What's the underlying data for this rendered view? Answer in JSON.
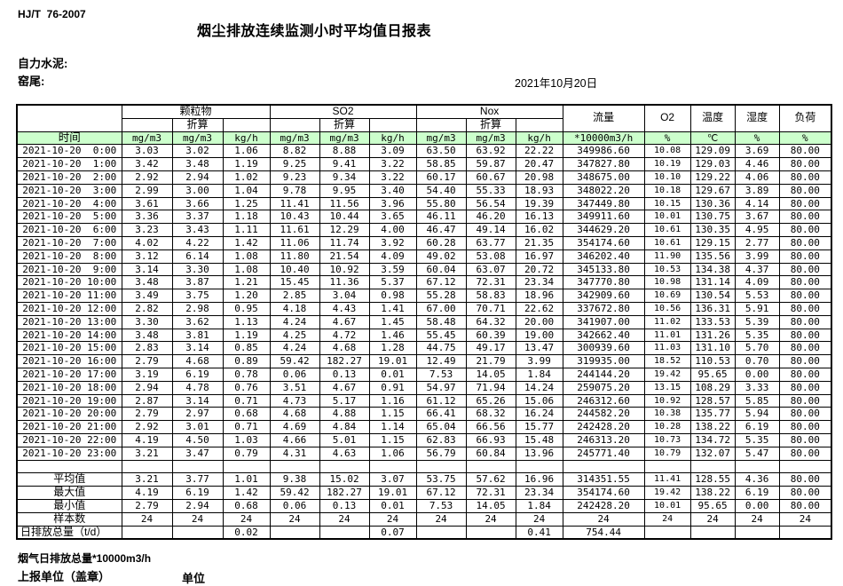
{
  "page": {
    "standard": "HJ/T  76-2007",
    "title": "烟尘排放连续监测小时平均值日报表",
    "company": "自力水泥:",
    "location": "窑尾:",
    "date": "2021年10月20日"
  },
  "footer": {
    "flue_total": "烟气日排放总量*10000m3/h",
    "report_unit": "上报单位（盖章）",
    "unit": "单位"
  },
  "table": {
    "time_label": "时间",
    "converted": "折算",
    "groups": {
      "pm": "颗粒物",
      "so2": "SO2",
      "nox": "Nox",
      "flow": "流量",
      "o2": "O2",
      "temp": "温度",
      "humidity": "湿度",
      "load": "负荷"
    },
    "units": [
      "mg/m3",
      "mg/m3",
      "kg/h",
      "mg/m3",
      "mg/m3",
      "kg/h",
      "mg/m3",
      "mg/m3",
      "kg/h",
      "*10000m3/h",
      "%",
      "℃",
      "%",
      "%"
    ],
    "rows": [
      {
        "t": "2021-10-20  0:00",
        "v": [
          "3.03",
          "3.02",
          "1.06",
          "8.82",
          "8.88",
          "3.09",
          "63.50",
          "63.92",
          "22.22",
          "349986.60",
          "10.08",
          "129.09",
          "3.69",
          "80.00"
        ]
      },
      {
        "t": "2021-10-20  1:00",
        "v": [
          "3.42",
          "3.48",
          "1.19",
          "9.25",
          "9.41",
          "3.22",
          "58.85",
          "59.87",
          "20.47",
          "347827.80",
          "10.19",
          "129.03",
          "4.46",
          "80.00"
        ]
      },
      {
        "t": "2021-10-20  2:00",
        "v": [
          "2.92",
          "2.94",
          "1.02",
          "9.23",
          "9.34",
          "3.22",
          "60.17",
          "60.67",
          "20.98",
          "348675.00",
          "10.10",
          "129.22",
          "4.06",
          "80.00"
        ]
      },
      {
        "t": "2021-10-20  3:00",
        "v": [
          "2.99",
          "3.00",
          "1.04",
          "9.78",
          "9.95",
          "3.40",
          "54.40",
          "55.33",
          "18.93",
          "348022.20",
          "10.18",
          "129.67",
          "3.89",
          "80.00"
        ]
      },
      {
        "t": "2021-10-20  4:00",
        "v": [
          "3.61",
          "3.66",
          "1.25",
          "11.41",
          "11.56",
          "3.96",
          "55.80",
          "56.54",
          "19.39",
          "347449.80",
          "10.15",
          "130.36",
          "4.14",
          "80.00"
        ]
      },
      {
        "t": "2021-10-20  5:00",
        "v": [
          "3.36",
          "3.37",
          "1.18",
          "10.43",
          "10.44",
          "3.65",
          "46.11",
          "46.20",
          "16.13",
          "349911.60",
          "10.01",
          "130.75",
          "3.67",
          "80.00"
        ]
      },
      {
        "t": "2021-10-20  6:00",
        "v": [
          "3.23",
          "3.43",
          "1.11",
          "11.61",
          "12.29",
          "4.00",
          "46.47",
          "49.14",
          "16.02",
          "344629.20",
          "10.61",
          "130.35",
          "4.95",
          "80.00"
        ]
      },
      {
        "t": "2021-10-20  7:00",
        "v": [
          "4.02",
          "4.22",
          "1.42",
          "11.06",
          "11.74",
          "3.92",
          "60.28",
          "63.77",
          "21.35",
          "354174.60",
          "10.61",
          "129.15",
          "2.77",
          "80.00"
        ]
      },
      {
        "t": "2021-10-20  8:00",
        "v": [
          "3.12",
          "6.14",
          "1.08",
          "11.80",
          "21.54",
          "4.09",
          "49.02",
          "53.08",
          "16.97",
          "346202.40",
          "11.90",
          "135.56",
          "3.99",
          "80.00"
        ]
      },
      {
        "t": "2021-10-20  9:00",
        "v": [
          "3.14",
          "3.30",
          "1.08",
          "10.40",
          "10.92",
          "3.59",
          "60.04",
          "63.07",
          "20.72",
          "345133.80",
          "10.53",
          "134.38",
          "4.37",
          "80.00"
        ]
      },
      {
        "t": "2021-10-20 10:00",
        "v": [
          "3.48",
          "3.87",
          "1.21",
          "15.45",
          "11.36",
          "5.37",
          "67.12",
          "72.31",
          "23.34",
          "347770.80",
          "10.98",
          "131.14",
          "4.09",
          "80.00"
        ]
      },
      {
        "t": "2021-10-20 11:00",
        "v": [
          "3.49",
          "3.75",
          "1.20",
          "2.85",
          "3.04",
          "0.98",
          "55.28",
          "58.83",
          "18.96",
          "342909.60",
          "10.69",
          "130.54",
          "5.53",
          "80.00"
        ]
      },
      {
        "t": "2021-10-20 12:00",
        "v": [
          "2.82",
          "2.98",
          "0.95",
          "4.18",
          "4.43",
          "1.41",
          "67.00",
          "70.71",
          "22.62",
          "337672.80",
          "10.56",
          "136.31",
          "5.91",
          "80.00"
        ]
      },
      {
        "t": "2021-10-20 13:00",
        "v": [
          "3.30",
          "3.62",
          "1.13",
          "4.24",
          "4.67",
          "1.45",
          "58.48",
          "64.32",
          "20.00",
          "341907.00",
          "11.02",
          "133.53",
          "5.39",
          "80.00"
        ]
      },
      {
        "t": "2021-10-20 14:00",
        "v": [
          "3.48",
          "3.81",
          "1.19",
          "4.25",
          "4.72",
          "1.46",
          "55.45",
          "60.39",
          "19.00",
          "342662.40",
          "11.01",
          "131.26",
          "5.35",
          "80.00"
        ]
      },
      {
        "t": "2021-10-20 15:00",
        "v": [
          "2.83",
          "3.14",
          "0.85",
          "4.24",
          "4.68",
          "1.28",
          "44.75",
          "49.17",
          "13.47",
          "300939.60",
          "11.03",
          "131.10",
          "5.70",
          "80.00"
        ]
      },
      {
        "t": "2021-10-20 16:00",
        "v": [
          "2.79",
          "4.68",
          "0.89",
          "59.42",
          "182.27",
          "19.01",
          "12.49",
          "21.79",
          "3.99",
          "319935.00",
          "18.52",
          "110.53",
          "0.70",
          "80.00"
        ]
      },
      {
        "t": "2021-10-20 17:00",
        "v": [
          "3.19",
          "6.19",
          "0.78",
          "0.06",
          "0.13",
          "0.01",
          "7.53",
          "14.05",
          "1.84",
          "244144.20",
          "19.42",
          "95.65",
          "0.00",
          "80.00"
        ]
      },
      {
        "t": "2021-10-20 18:00",
        "v": [
          "2.94",
          "4.78",
          "0.76",
          "3.51",
          "4.67",
          "0.91",
          "54.97",
          "71.94",
          "14.24",
          "259075.20",
          "13.15",
          "108.29",
          "3.33",
          "80.00"
        ]
      },
      {
        "t": "2021-10-20 19:00",
        "v": [
          "2.87",
          "3.14",
          "0.71",
          "4.73",
          "5.17",
          "1.16",
          "61.12",
          "65.26",
          "15.06",
          "246312.60",
          "10.92",
          "128.57",
          "5.85",
          "80.00"
        ]
      },
      {
        "t": "2021-10-20 20:00",
        "v": [
          "2.79",
          "2.97",
          "0.68",
          "4.68",
          "4.88",
          "1.15",
          "66.41",
          "68.32",
          "16.24",
          "244582.20",
          "10.38",
          "135.77",
          "5.94",
          "80.00"
        ]
      },
      {
        "t": "2021-10-20 21:00",
        "v": [
          "2.92",
          "3.01",
          "0.71",
          "4.69",
          "4.84",
          "1.14",
          "65.04",
          "66.56",
          "15.77",
          "242428.20",
          "10.28",
          "138.22",
          "6.19",
          "80.00"
        ]
      },
      {
        "t": "2021-10-20 22:00",
        "v": [
          "4.19",
          "4.50",
          "1.03",
          "4.66",
          "5.01",
          "1.15",
          "62.83",
          "66.93",
          "15.48",
          "246313.20",
          "10.73",
          "134.72",
          "5.35",
          "80.00"
        ]
      },
      {
        "t": "2021-10-20 23:00",
        "v": [
          "3.21",
          "3.47",
          "0.79",
          "4.31",
          "4.63",
          "1.06",
          "56.79",
          "60.84",
          "13.96",
          "245771.40",
          "10.79",
          "132.07",
          "5.47",
          "80.00"
        ]
      }
    ],
    "summary": [
      {
        "label": "平均值",
        "align": "center",
        "v": [
          "3.21",
          "3.77",
          "1.01",
          "9.38",
          "15.02",
          "3.07",
          "53.75",
          "57.62",
          "16.96",
          "314351.55",
          "11.41",
          "128.55",
          "4.36",
          "80.00"
        ]
      },
      {
        "label": "最大值",
        "align": "center",
        "v": [
          "4.19",
          "6.19",
          "1.42",
          "59.42",
          "182.27",
          "19.01",
          "67.12",
          "72.31",
          "23.34",
          "354174.60",
          "19.42",
          "138.22",
          "6.19",
          "80.00"
        ]
      },
      {
        "label": "最小值",
        "align": "center",
        "v": [
          "2.79",
          "2.94",
          "0.68",
          "0.06",
          "0.13",
          "0.01",
          "7.53",
          "14.05",
          "1.84",
          "242428.20",
          "10.01",
          "95.65",
          "0.00",
          "80.00"
        ]
      },
      {
        "label": "样本数",
        "align": "center",
        "v": [
          "24",
          "24",
          "24",
          "24",
          "24",
          "24",
          "24",
          "24",
          "24",
          "24",
          "24",
          "24",
          "24",
          "24"
        ]
      },
      {
        "label": "日排放总量（t/d）",
        "align": "left",
        "v": [
          "",
          "",
          "0.02",
          "",
          "",
          "0.07",
          "",
          "",
          "0.41",
          "754.44",
          "",
          "",
          "",
          ""
        ]
      }
    ],
    "accent_green": "#ccffcc"
  }
}
